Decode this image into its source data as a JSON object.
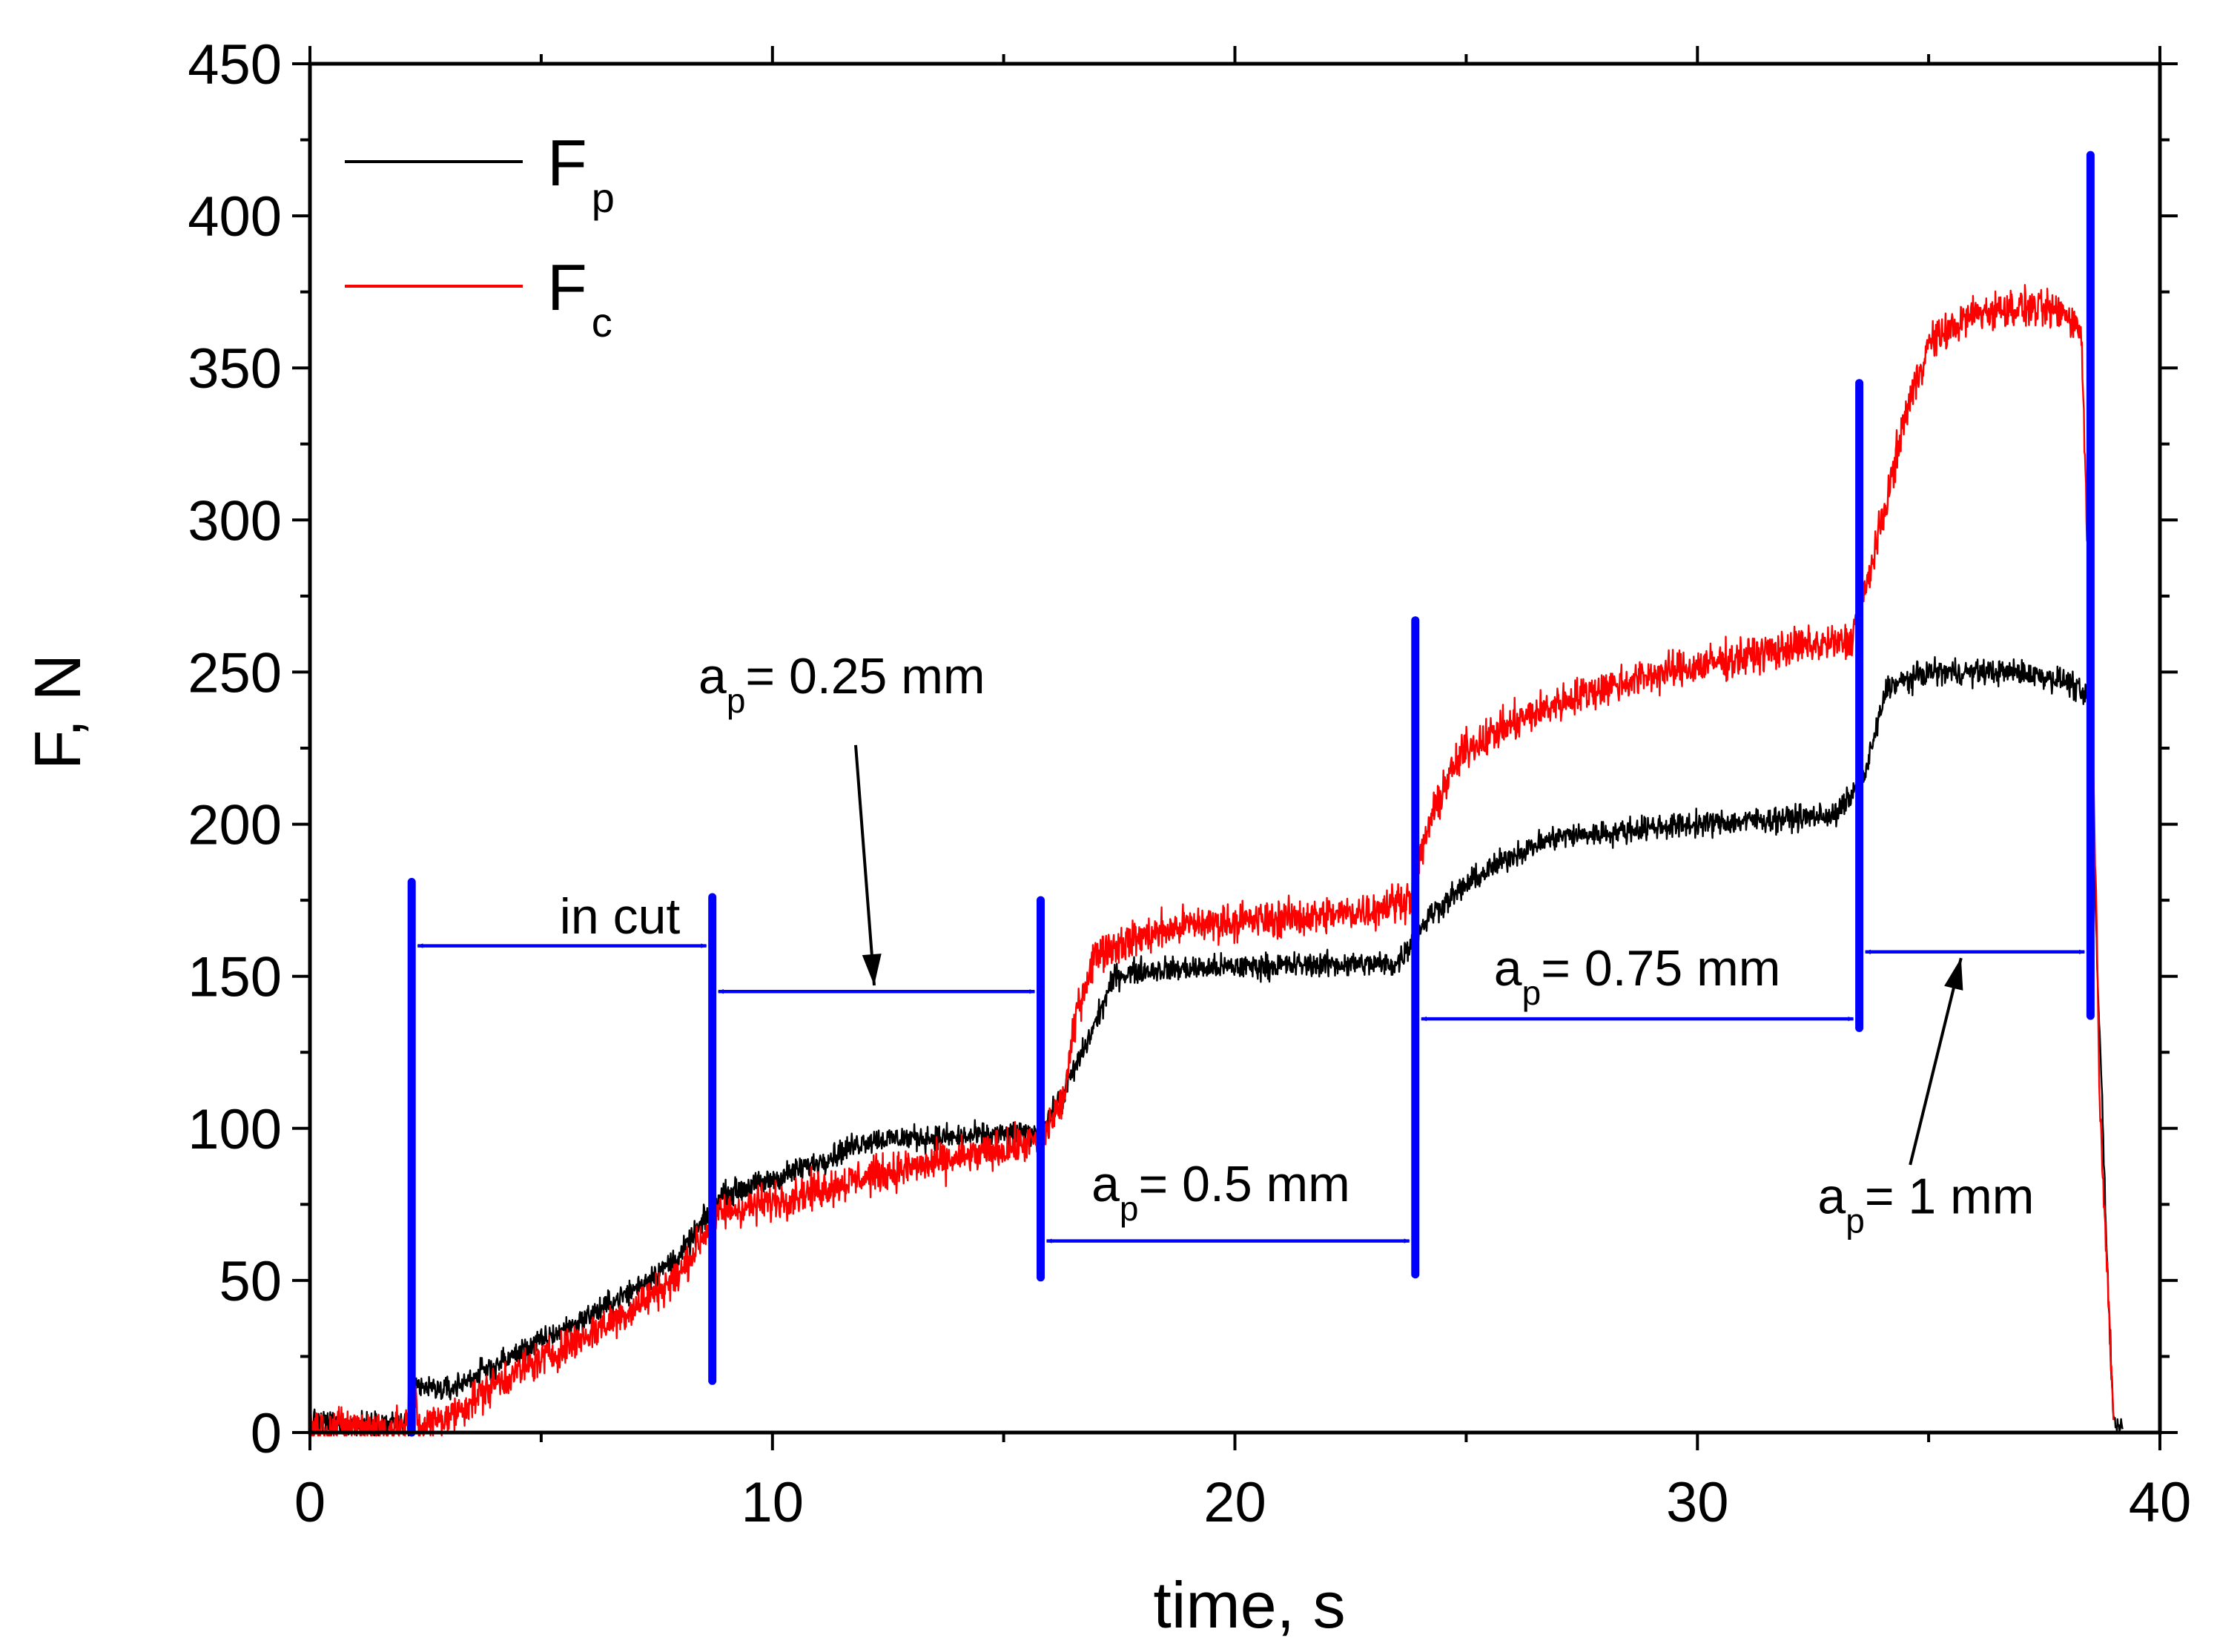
{
  "chart_data": {
    "type": "line",
    "title": "",
    "xlabel": "time, s",
    "ylabel": "F, N",
    "xlim": [
      0,
      40
    ],
    "ylim": [
      0,
      450
    ],
    "x_ticks": [
      0,
      10,
      20,
      30,
      40
    ],
    "y_ticks": [
      0,
      50,
      100,
      150,
      200,
      250,
      300,
      350,
      400,
      450
    ],
    "x_minor_step": 5,
    "y_minor_step": 25,
    "grid": false,
    "legend_position": "top-left",
    "series": [
      {
        "name": "Fp",
        "name_main": "F",
        "name_sub": "p",
        "color": "#000000",
        "noise": 6,
        "points": [
          [
            0,
            3
          ],
          [
            2.15,
            3
          ],
          [
            2.2,
            15
          ],
          [
            3,
            14
          ],
          [
            4,
            22
          ],
          [
            5,
            30
          ],
          [
            6,
            38
          ],
          [
            7,
            47
          ],
          [
            8,
            58
          ],
          [
            8.9,
            78
          ],
          [
            10,
            83
          ],
          [
            11,
            89
          ],
          [
            12,
            96
          ],
          [
            13,
            97
          ],
          [
            14,
            97
          ],
          [
            15,
            98
          ],
          [
            15.8,
            98
          ],
          [
            16.3,
            112
          ],
          [
            16.8,
            128
          ],
          [
            17.4,
            150
          ],
          [
            18,
            152
          ],
          [
            20,
            153
          ],
          [
            22,
            154
          ],
          [
            23.5,
            154
          ],
          [
            24.2,
            170
          ],
          [
            25,
            180
          ],
          [
            26,
            190
          ],
          [
            27,
            196
          ],
          [
            28,
            197
          ],
          [
            29,
            199
          ],
          [
            30,
            200
          ],
          [
            31,
            201
          ],
          [
            32,
            202
          ],
          [
            33,
            203
          ],
          [
            33.6,
            215
          ],
          [
            34.1,
            245
          ],
          [
            35,
            250
          ],
          [
            36,
            250
          ],
          [
            37,
            250
          ],
          [
            38,
            247
          ],
          [
            38.5,
            240
          ],
          [
            38.65,
            150
          ],
          [
            38.75,
            110
          ],
          [
            38.85,
            60
          ],
          [
            39,
            3
          ],
          [
            39.2,
            2
          ]
        ]
      },
      {
        "name": "Fc",
        "name_main": "F",
        "name_sub": "c",
        "color": "#ff0000",
        "noise": 9,
        "points": [
          [
            0,
            2
          ],
          [
            2.1,
            2
          ],
          [
            2.2,
            22
          ],
          [
            2.35,
            2
          ],
          [
            3,
            5
          ],
          [
            4,
            16
          ],
          [
            5,
            24
          ],
          [
            6,
            32
          ],
          [
            7,
            41
          ],
          [
            8,
            52
          ],
          [
            8.8,
            72
          ],
          [
            10,
            76
          ],
          [
            11,
            80
          ],
          [
            12,
            84
          ],
          [
            13,
            87
          ],
          [
            14,
            90
          ],
          [
            15,
            93
          ],
          [
            15.8,
            96
          ],
          [
            16.3,
            110
          ],
          [
            16.6,
            140
          ],
          [
            17,
            158
          ],
          [
            18,
            163
          ],
          [
            19,
            167
          ],
          [
            20,
            168
          ],
          [
            21,
            169
          ],
          [
            22,
            170
          ],
          [
            23,
            172
          ],
          [
            23.8,
            176
          ],
          [
            24.2,
            200
          ],
          [
            24.6,
            215
          ],
          [
            25,
            225
          ],
          [
            26,
            233
          ],
          [
            27,
            240
          ],
          [
            28,
            245
          ],
          [
            29,
            249
          ],
          [
            30,
            252
          ],
          [
            31,
            255
          ],
          [
            32,
            258
          ],
          [
            33.3,
            260
          ],
          [
            33.6,
            275
          ],
          [
            34,
            300
          ],
          [
            34.5,
            335
          ],
          [
            35,
            358
          ],
          [
            36,
            368
          ],
          [
            37,
            370
          ],
          [
            38,
            368
          ],
          [
            38.3,
            362
          ],
          [
            38.55,
            230
          ],
          [
            38.7,
            110
          ],
          [
            38.9,
            40
          ],
          [
            39,
            0
          ]
        ]
      }
    ],
    "markers": {
      "color": "#0000ff",
      "lines": [
        {
          "x": 2.2,
          "y_from": 0,
          "y_to": 181
        },
        {
          "x": 8.7,
          "y_from": 17,
          "y_to": 176
        },
        {
          "x": 15.8,
          "y_from": 51,
          "y_to": 175
        },
        {
          "x": 23.9,
          "y_from": 52,
          "y_to": 267
        },
        {
          "x": 33.5,
          "y_from": 133,
          "y_to": 345
        },
        {
          "x": 38.5,
          "y_from": 137,
          "y_to": 420
        }
      ],
      "arrows": [
        {
          "x1": 2.2,
          "x2": 8.7,
          "y": 160
        },
        {
          "x1": 8.7,
          "x2": 15.8,
          "y": 145
        },
        {
          "x1": 15.8,
          "x2": 23.9,
          "y": 63
        },
        {
          "x1": 23.9,
          "x2": 33.5,
          "y": 136
        },
        {
          "x1": 33.5,
          "x2": 38.5,
          "y": 158
        }
      ]
    },
    "annotations": [
      {
        "id": "in-cut",
        "main": "in cut",
        "sub": "",
        "rest": "",
        "x": 5.4,
        "y": 164
      },
      {
        "id": "ap-025",
        "main": "a",
        "sub": "p",
        "rest": "= 0.25 mm",
        "x": 8.4,
        "y": 243,
        "pointer": [
          [
            11.8,
            226
          ],
          [
            12.2,
            147
          ]
        ]
      },
      {
        "id": "ap-05",
        "main": "a",
        "sub": "p",
        "rest": "= 0.5 mm",
        "x": 16.9,
        "y": 76
      },
      {
        "id": "ap-075",
        "main": "a",
        "sub": "p",
        "rest": "= 0.75 mm",
        "x": 25.6,
        "y": 147
      },
      {
        "id": "ap-1",
        "main": "a",
        "sub": "p",
        "rest": "= 1 mm",
        "x": 32.6,
        "y": 72,
        "pointer": [
          [
            34.6,
            88
          ],
          [
            35.7,
            156
          ]
        ]
      }
    ]
  }
}
